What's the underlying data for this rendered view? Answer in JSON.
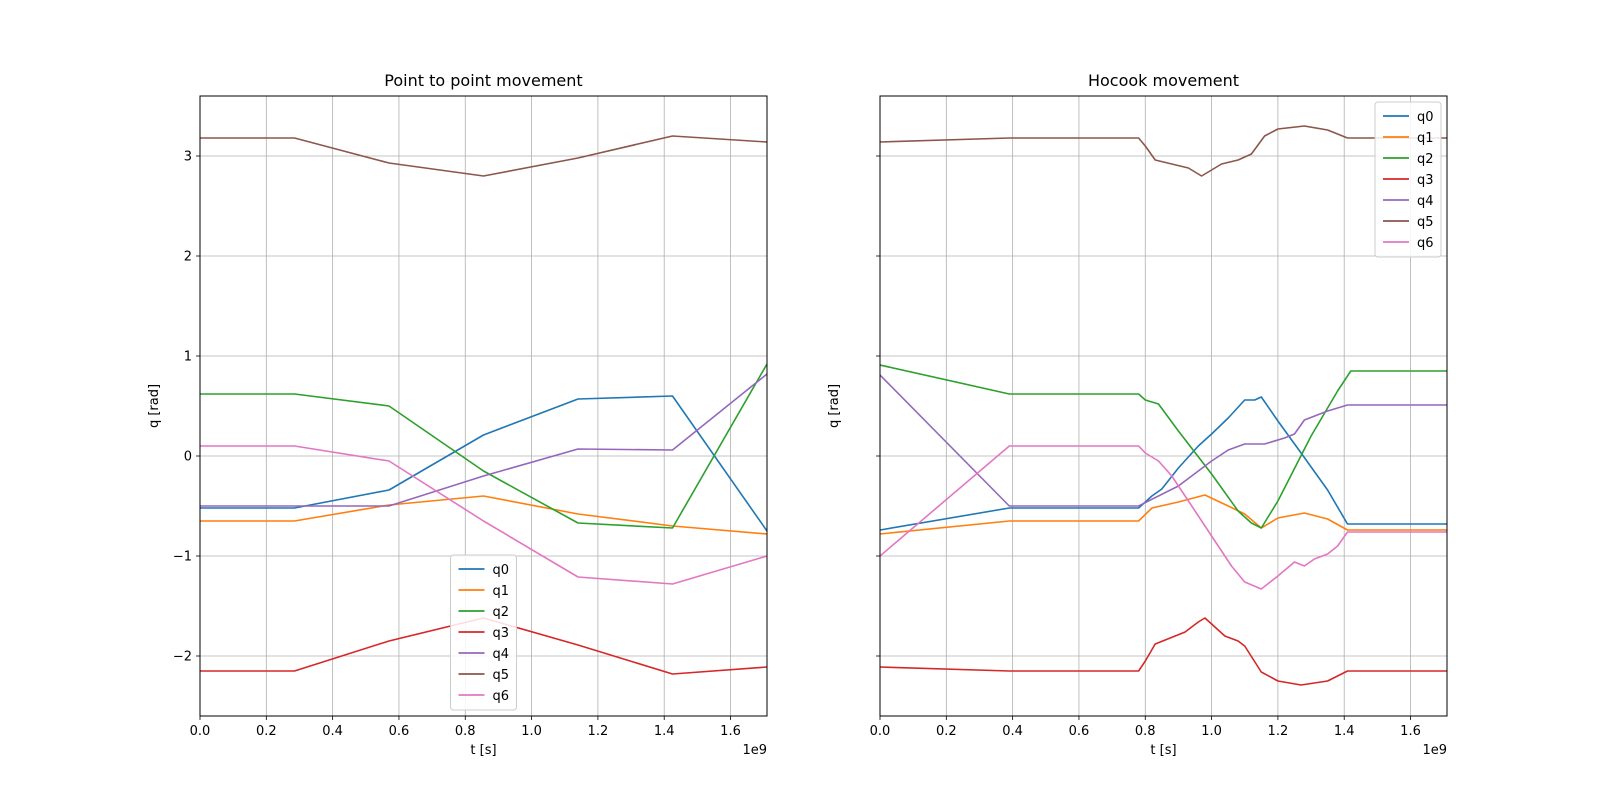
{
  "chart_data": [
    {
      "type": "line",
      "title": "Point to point movement",
      "xlabel": "t [s]",
      "ylabel": "q [rad]",
      "x_offset_text": "1e9",
      "xlim": [
        0,
        1.71
      ],
      "ylim": [
        -2.6,
        3.6
      ],
      "xticks": [
        0.0,
        0.2,
        0.4,
        0.6,
        0.8,
        1.0,
        1.2,
        1.4,
        1.6
      ],
      "xtick_labels": [
        "0.0",
        "0.2",
        "0.4",
        "0.6",
        "0.8",
        "1.0",
        "1.2",
        "1.4",
        "1.6"
      ],
      "yticks": [
        -2,
        -1,
        0,
        1,
        2,
        3
      ],
      "ytick_labels": [
        "−2",
        "−1",
        "0",
        "1",
        "2",
        "3"
      ],
      "grid": true,
      "legend_position": "lower-center",
      "series": [
        {
          "name": "q0",
          "color": "#1f77b4",
          "x": [
            0,
            0.285,
            0.57,
            0.855,
            1.14,
            1.425,
            1.71
          ],
          "y": [
            -0.52,
            -0.52,
            -0.34,
            0.21,
            0.57,
            0.6,
            -0.75
          ]
        },
        {
          "name": "q1",
          "color": "#ff7f0e",
          "x": [
            0,
            0.285,
            0.57,
            0.855,
            1.14,
            1.425,
            1.71
          ],
          "y": [
            -0.65,
            -0.65,
            -0.49,
            -0.4,
            -0.58,
            -0.7,
            -0.78
          ]
        },
        {
          "name": "q2",
          "color": "#2ca02c",
          "x": [
            0,
            0.285,
            0.57,
            0.855,
            1.14,
            1.425,
            1.71
          ],
          "y": [
            0.62,
            0.62,
            0.5,
            -0.15,
            -0.67,
            -0.72,
            0.92
          ]
        },
        {
          "name": "q3",
          "color": "#d62728",
          "x": [
            0,
            0.285,
            0.57,
            0.855,
            1.14,
            1.425,
            1.71
          ],
          "y": [
            -2.15,
            -2.15,
            -1.85,
            -1.62,
            -1.89,
            -2.18,
            -2.11
          ]
        },
        {
          "name": "q4",
          "color": "#9467bd",
          "x": [
            0,
            0.285,
            0.57,
            0.855,
            1.14,
            1.425,
            1.71
          ],
          "y": [
            -0.5,
            -0.5,
            -0.5,
            -0.2,
            0.07,
            0.06,
            0.82
          ]
        },
        {
          "name": "q5",
          "color": "#8c564b",
          "x": [
            0,
            0.285,
            0.57,
            0.855,
            1.14,
            1.425,
            1.71
          ],
          "y": [
            3.18,
            3.18,
            2.93,
            2.8,
            2.98,
            3.2,
            3.14
          ]
        },
        {
          "name": "q6",
          "color": "#e377c2",
          "x": [
            0,
            0.285,
            0.57,
            0.855,
            1.14,
            1.425,
            1.71
          ],
          "y": [
            0.1,
            0.1,
            -0.05,
            -0.65,
            -1.21,
            -1.28,
            -1.0
          ]
        }
      ]
    },
    {
      "type": "line",
      "title": "Hocook movement",
      "xlabel": "t [s]",
      "ylabel": "q [rad]",
      "x_offset_text": "1e9",
      "xlim": [
        0,
        1.71
      ],
      "ylim": [
        -2.6,
        3.6
      ],
      "xticks": [
        0.0,
        0.2,
        0.4,
        0.6,
        0.8,
        1.0,
        1.2,
        1.4,
        1.6
      ],
      "xtick_labels": [
        "0.0",
        "0.2",
        "0.4",
        "0.6",
        "0.8",
        "1.0",
        "1.2",
        "1.4",
        "1.6"
      ],
      "yticks": [
        -2,
        -1,
        0,
        1,
        2,
        3
      ],
      "ytick_labels": [
        "",
        "",
        "",
        "",
        "",
        ""
      ],
      "grid": true,
      "legend_position": "upper-right",
      "series": [
        {
          "name": "q0",
          "color": "#1f77b4",
          "x": [
            0,
            0.39,
            0.78,
            0.82,
            0.85,
            0.9,
            0.96,
            1.0,
            1.05,
            1.1,
            1.13,
            1.15,
            1.2,
            1.27,
            1.35,
            1.41,
            1.71
          ],
          "y": [
            -0.74,
            -0.52,
            -0.52,
            -0.4,
            -0.33,
            -0.12,
            0.1,
            0.22,
            0.38,
            0.56,
            0.56,
            0.59,
            0.35,
            0.03,
            -0.34,
            -0.68,
            -0.68
          ]
        },
        {
          "name": "q1",
          "color": "#ff7f0e",
          "x": [
            0,
            0.39,
            0.78,
            0.82,
            0.9,
            0.98,
            1.05,
            1.1,
            1.15,
            1.2,
            1.28,
            1.35,
            1.41,
            1.71
          ],
          "y": [
            -0.78,
            -0.65,
            -0.65,
            -0.52,
            -0.46,
            -0.39,
            -0.5,
            -0.58,
            -0.72,
            -0.62,
            -0.57,
            -0.63,
            -0.74,
            -0.74
          ]
        },
        {
          "name": "q2",
          "color": "#2ca02c",
          "x": [
            0,
            0.39,
            0.78,
            0.8,
            0.84,
            0.9,
            1.0,
            1.08,
            1.12,
            1.15,
            1.2,
            1.3,
            1.38,
            1.42,
            1.71
          ],
          "y": [
            0.91,
            0.62,
            0.62,
            0.56,
            0.52,
            0.25,
            -0.18,
            -0.55,
            -0.67,
            -0.72,
            -0.45,
            0.2,
            0.65,
            0.85,
            0.85
          ]
        },
        {
          "name": "q3",
          "color": "#d62728",
          "x": [
            0,
            0.39,
            0.78,
            0.8,
            0.83,
            0.86,
            0.92,
            0.96,
            0.98,
            1.0,
            1.04,
            1.08,
            1.1,
            1.15,
            1.2,
            1.27,
            1.35,
            1.41,
            1.71
          ],
          "y": [
            -2.11,
            -2.15,
            -2.15,
            -2.05,
            -1.88,
            -1.84,
            -1.76,
            -1.66,
            -1.62,
            -1.68,
            -1.8,
            -1.85,
            -1.9,
            -2.16,
            -2.25,
            -2.29,
            -2.25,
            -2.15,
            -2.15
          ]
        },
        {
          "name": "q4",
          "color": "#9467bd",
          "x": [
            0,
            0.39,
            0.78,
            0.9,
            1.0,
            1.05,
            1.1,
            1.16,
            1.22,
            1.25,
            1.28,
            1.35,
            1.41,
            1.71
          ],
          "y": [
            0.81,
            -0.5,
            -0.5,
            -0.3,
            -0.05,
            0.06,
            0.12,
            0.12,
            0.18,
            0.22,
            0.36,
            0.45,
            0.51,
            0.51
          ]
        },
        {
          "name": "q5",
          "color": "#8c564b",
          "x": [
            0,
            0.39,
            0.78,
            0.8,
            0.83,
            0.88,
            0.93,
            0.97,
            1.0,
            1.03,
            1.08,
            1.12,
            1.16,
            1.2,
            1.28,
            1.35,
            1.41,
            1.71
          ],
          "y": [
            3.14,
            3.18,
            3.18,
            3.1,
            2.96,
            2.92,
            2.88,
            2.8,
            2.86,
            2.92,
            2.96,
            3.02,
            3.2,
            3.27,
            3.3,
            3.26,
            3.18,
            3.18
          ]
        },
        {
          "name": "q6",
          "color": "#e377c2",
          "x": [
            0,
            0.39,
            0.78,
            0.8,
            0.84,
            0.88,
            0.92,
            1.0,
            1.06,
            1.1,
            1.15,
            1.2,
            1.25,
            1.28,
            1.31,
            1.35,
            1.38,
            1.41,
            1.71
          ],
          "y": [
            -1.0,
            0.1,
            0.1,
            0.03,
            -0.05,
            -0.2,
            -0.4,
            -0.8,
            -1.1,
            -1.26,
            -1.33,
            -1.2,
            -1.06,
            -1.1,
            -1.03,
            -0.98,
            -0.9,
            -0.76,
            -0.76
          ]
        }
      ]
    }
  ]
}
